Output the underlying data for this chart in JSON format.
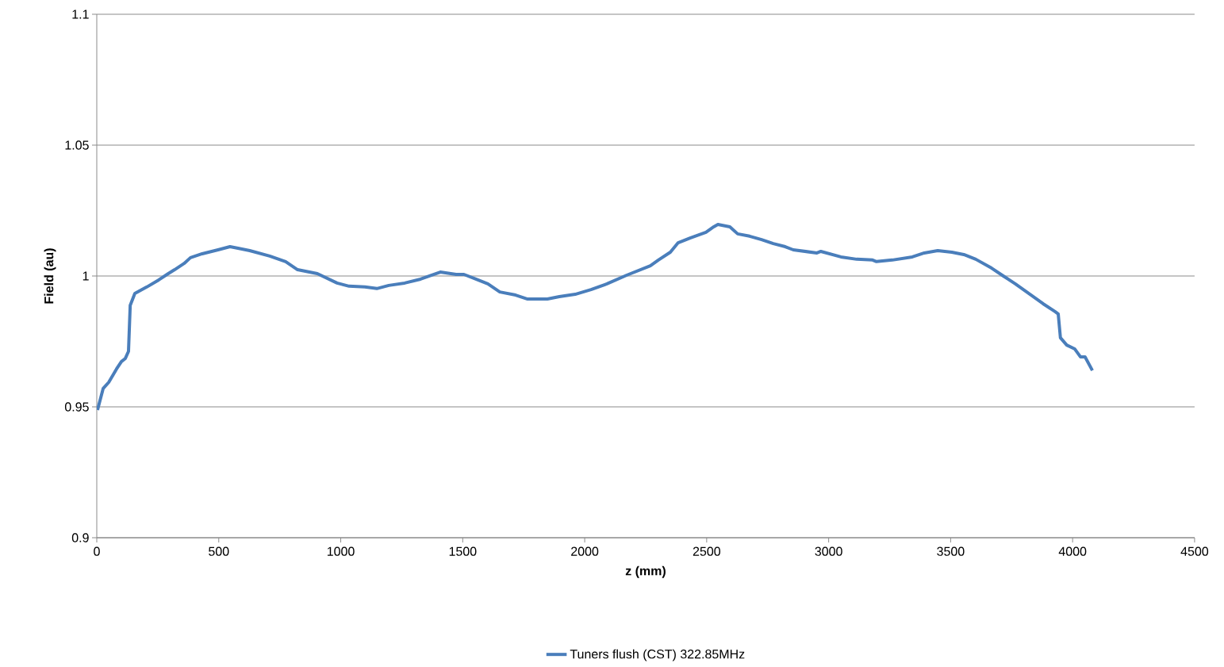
{
  "chart_data": {
    "type": "line",
    "xlabel": "z (mm)",
    "ylabel": "Field (au)",
    "x": [
      3,
      26,
      49,
      81,
      101,
      117,
      130,
      137,
      156,
      205,
      254,
      293,
      319,
      358,
      384,
      432,
      497,
      546,
      579,
      627,
      709,
      774,
      823,
      904,
      985,
      1034,
      1099,
      1148,
      1197,
      1262,
      1327,
      1408,
      1473,
      1505,
      1554,
      1603,
      1652,
      1717,
      1766,
      1847,
      1896,
      1961,
      2026,
      2091,
      2172,
      2269,
      2302,
      2351,
      2383,
      2432,
      2497,
      2529,
      2546,
      2595,
      2627,
      2676,
      2725,
      2773,
      2822,
      2855,
      2952,
      2968,
      3050,
      3115,
      3180,
      3196,
      3261,
      3343,
      3392,
      3447,
      3505,
      3554,
      3603,
      3668,
      3716,
      3765,
      3830,
      3879,
      3928,
      3941,
      3950,
      3976,
      4009,
      4032,
      4051,
      4081
    ],
    "series": [
      {
        "name": "Tuners flush (CST) 322.85MHz",
        "color": "#4a7ebb",
        "values": [
          0.9488,
          0.957,
          0.9594,
          0.9645,
          0.9673,
          0.9685,
          0.9712,
          0.9888,
          0.9933,
          0.9958,
          0.9985,
          1.0009,
          1.0024,
          1.0048,
          1.007,
          1.0085,
          1.01,
          1.0112,
          1.0106,
          1.0097,
          1.0076,
          1.0055,
          1.0024,
          1.0009,
          0.9973,
          0.9961,
          0.9958,
          0.9952,
          0.9964,
          0.9973,
          0.9988,
          1.0015,
          1.0006,
          1.0006,
          0.9988,
          0.997,
          0.9939,
          0.9927,
          0.9912,
          0.9912,
          0.9921,
          0.993,
          0.9948,
          0.997,
          1.0003,
          1.0039,
          1.0061,
          1.0091,
          1.0127,
          1.0145,
          1.0167,
          1.0188,
          1.0197,
          1.0188,
          1.0161,
          1.0152,
          1.0139,
          1.0124,
          1.0112,
          1.01,
          1.0088,
          1.0094,
          1.0073,
          1.0064,
          1.0061,
          1.0055,
          1.0061,
          1.0073,
          1.0088,
          1.0097,
          1.0091,
          1.0082,
          1.0064,
          1.003,
          1.0,
          0.997,
          0.9927,
          0.9894,
          0.9864,
          0.9855,
          0.9764,
          0.9736,
          0.9721,
          0.9691,
          0.9691,
          0.9639
        ]
      }
    ],
    "xlim": [
      0,
      4500
    ],
    "ylim": [
      0.9,
      1.1
    ],
    "xticks": [
      0,
      500,
      1000,
      1500,
      2000,
      2500,
      3000,
      3500,
      4000,
      4500
    ],
    "yticks": [
      0.9,
      0.95,
      1,
      1.05,
      1.1
    ],
    "grid": "y",
    "legend": "bottom"
  }
}
